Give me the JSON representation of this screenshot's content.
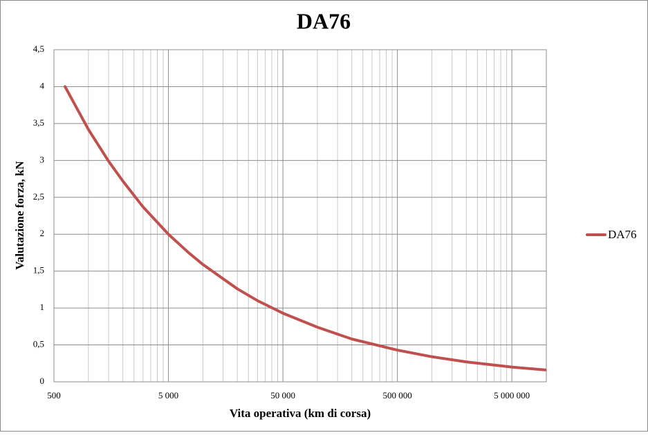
{
  "chart_data": {
    "type": "line",
    "title": "DA76",
    "x_label": "Vita operativa (km di corsa)",
    "y_label": "Valutazione forza, kN",
    "x": [
      625,
      1000,
      1500,
      2000,
      3000,
      5000,
      7500,
      10000,
      20000,
      30000,
      50000,
      100000,
      200000,
      500000,
      1000000,
      2000000,
      5000000,
      10000000
    ],
    "series": [
      {
        "name": "DA76",
        "color": "#c0504d",
        "values": [
          4,
          3.42,
          2.99,
          2.72,
          2.37,
          2,
          1.75,
          1.59,
          1.26,
          1.1,
          0.93,
          0.74,
          0.58,
          0.43,
          0.34,
          0.27,
          0.2,
          0.16
        ]
      }
    ],
    "xlim": [
      500,
      10000000
    ],
    "x_log": true,
    "xticks": [
      500,
      {
        "value": 5000,
        "label": "5 000"
      },
      {
        "value": 50000,
        "label": "50 000"
      },
      {
        "value": 500000,
        "label": "500 000"
      },
      {
        "value": 5000000,
        "label": "5 000 000"
      }
    ],
    "ylim": [
      0,
      4.5
    ],
    "yticks": [
      0,
      {
        "value": 0.5,
        "label": "0,5"
      },
      1,
      {
        "value": 1.5,
        "label": "1,5"
      },
      2,
      {
        "value": 2.5,
        "label": "2,5"
      },
      3,
      {
        "value": 3.5,
        "label": "3,5"
      },
      4,
      {
        "value": 4.5,
        "label": "4,5"
      }
    ],
    "grid": true,
    "legend": "right"
  }
}
